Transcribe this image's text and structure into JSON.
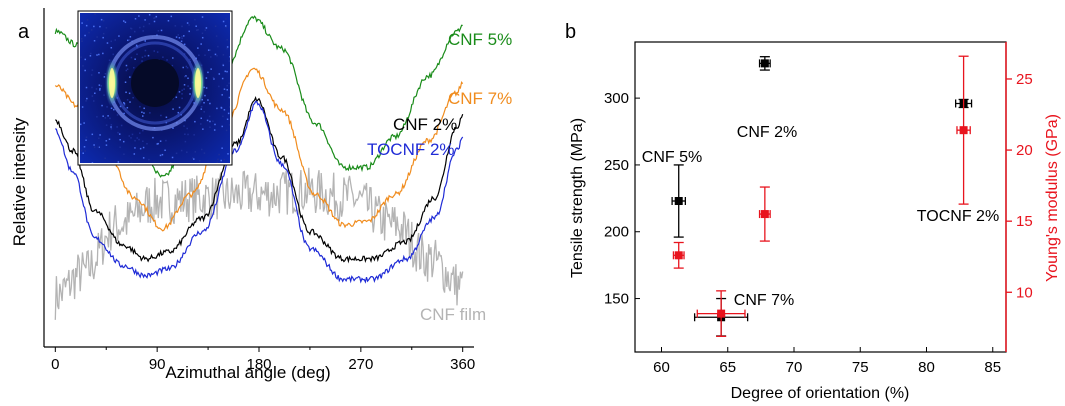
{
  "chart_data": [
    {
      "panel_label": "a",
      "type": "line",
      "xlabel": "Azimuthal angle (deg)",
      "ylabel": "Relative intensity",
      "xlim": [
        -10,
        370
      ],
      "x_ticks": [
        "0",
        "90",
        "180",
        "270",
        "360"
      ],
      "y_ticks_visible": false,
      "inset": "2D diffraction pattern image (top-left)",
      "series": [
        {
          "name": "CNF 5%",
          "color": "#1a8c1a",
          "profile": [
            [
              0,
              0.93
            ],
            [
              20,
              0.89
            ],
            [
              45,
              0.79
            ],
            [
              70,
              0.63
            ],
            [
              95,
              0.5
            ],
            [
              120,
              0.62
            ],
            [
              150,
              0.82
            ],
            [
              175,
              0.97
            ],
            [
              200,
              0.88
            ],
            [
              230,
              0.66
            ],
            [
              255,
              0.53
            ],
            [
              275,
              0.53
            ],
            [
              300,
              0.62
            ],
            [
              330,
              0.8
            ],
            [
              355,
              0.93
            ],
            [
              360,
              0.95
            ]
          ]
        },
        {
          "name": "CNF 7%",
          "color": "#f08c1e",
          "profile": [
            [
              0,
              0.77
            ],
            [
              20,
              0.71
            ],
            [
              45,
              0.58
            ],
            [
              70,
              0.44
            ],
            [
              95,
              0.35
            ],
            [
              120,
              0.45
            ],
            [
              150,
              0.66
            ],
            [
              175,
              0.82
            ],
            [
              200,
              0.7
            ],
            [
              230,
              0.45
            ],
            [
              255,
              0.36
            ],
            [
              275,
              0.37
            ],
            [
              300,
              0.45
            ],
            [
              330,
              0.61
            ],
            [
              355,
              0.75
            ],
            [
              360,
              0.78
            ]
          ]
        },
        {
          "name": "CNF 2%",
          "color": "#000000",
          "profile": [
            [
              0,
              0.67
            ],
            [
              15,
              0.58
            ],
            [
              35,
              0.4
            ],
            [
              60,
              0.3
            ],
            [
              80,
              0.26
            ],
            [
              100,
              0.28
            ],
            [
              130,
              0.38
            ],
            [
              160,
              0.6
            ],
            [
              178,
              0.73
            ],
            [
              200,
              0.56
            ],
            [
              225,
              0.34
            ],
            [
              255,
              0.26
            ],
            [
              280,
              0.26
            ],
            [
              310,
              0.31
            ],
            [
              335,
              0.44
            ],
            [
              355,
              0.65
            ],
            [
              360,
              0.68
            ]
          ]
        },
        {
          "name": "TOCNF 2%",
          "color": "#1f2bd6",
          "profile": [
            [
              0,
              0.64
            ],
            [
              15,
              0.52
            ],
            [
              35,
              0.32
            ],
            [
              60,
              0.24
            ],
            [
              80,
              0.21
            ],
            [
              100,
              0.23
            ],
            [
              130,
              0.34
            ],
            [
              160,
              0.58
            ],
            [
              178,
              0.72
            ],
            [
              200,
              0.54
            ],
            [
              225,
              0.29
            ],
            [
              255,
              0.2
            ],
            [
              280,
              0.2
            ],
            [
              310,
              0.26
            ],
            [
              335,
              0.38
            ],
            [
              355,
              0.58
            ],
            [
              360,
              0.62
            ]
          ]
        },
        {
          "name": "CNF film",
          "color": "#b4b4b4",
          "profile": [
            [
              0,
              0.15
            ],
            [
              25,
              0.22
            ],
            [
              55,
              0.36
            ],
            [
              90,
              0.43
            ],
            [
              130,
              0.44
            ],
            [
              180,
              0.45
            ],
            [
              220,
              0.46
            ],
            [
              260,
              0.44
            ],
            [
              300,
              0.36
            ],
            [
              330,
              0.26
            ],
            [
              360,
              0.18
            ]
          ]
        }
      ]
    },
    {
      "panel_label": "b",
      "type": "scatter",
      "xlabel": "Degree of orientation (%)",
      "ylabel": "Tensile strength (MPa)",
      "y2label": "Young's modulus (GPa)",
      "xlim": [
        58,
        86
      ],
      "ylim": [
        110,
        342
      ],
      "y2lim": [
        5.8,
        27.6
      ],
      "x_ticks": [
        "60",
        "65",
        "70",
        "75",
        "80",
        "85"
      ],
      "y_ticks": [
        "150",
        "200",
        "250",
        "300"
      ],
      "y2_ticks": [
        "10",
        "15",
        "20",
        "25"
      ],
      "series": [
        {
          "axis": "left",
          "color": "#000000",
          "points": [
            {
              "x": 61.3,
              "x_err": 0.5,
              "y": 223,
              "y_err": 27
            },
            {
              "x": 64.5,
              "x_err": 2.0,
              "y": 136,
              "y_err": 14
            },
            {
              "x": 67.8,
              "x_err": 0.4,
              "y": 326,
              "y_err": 5
            },
            {
              "x": 82.8,
              "x_err": 0.6,
              "y": 296,
              "y_err": 3
            }
          ]
        },
        {
          "axis": "right",
          "color": "#e8141e",
          "points": [
            {
              "x": 61.3,
              "x_err": 0.4,
              "y": 12.6,
              "y_err": 0.9
            },
            {
              "x": 64.5,
              "x_err": 1.8,
              "y": 8.5,
              "y_err": 1.6
            },
            {
              "x": 67.8,
              "x_err": 0.4,
              "y": 15.5,
              "y_err": 1.9
            },
            {
              "x": 82.8,
              "x_err": 0.5,
              "y": 21.4,
              "y_err": 5.2
            }
          ]
        }
      ],
      "annotations": [
        "CNF 5%",
        "CNF 7%",
        "CNF 2%",
        "TOCNF 2%"
      ]
    }
  ]
}
